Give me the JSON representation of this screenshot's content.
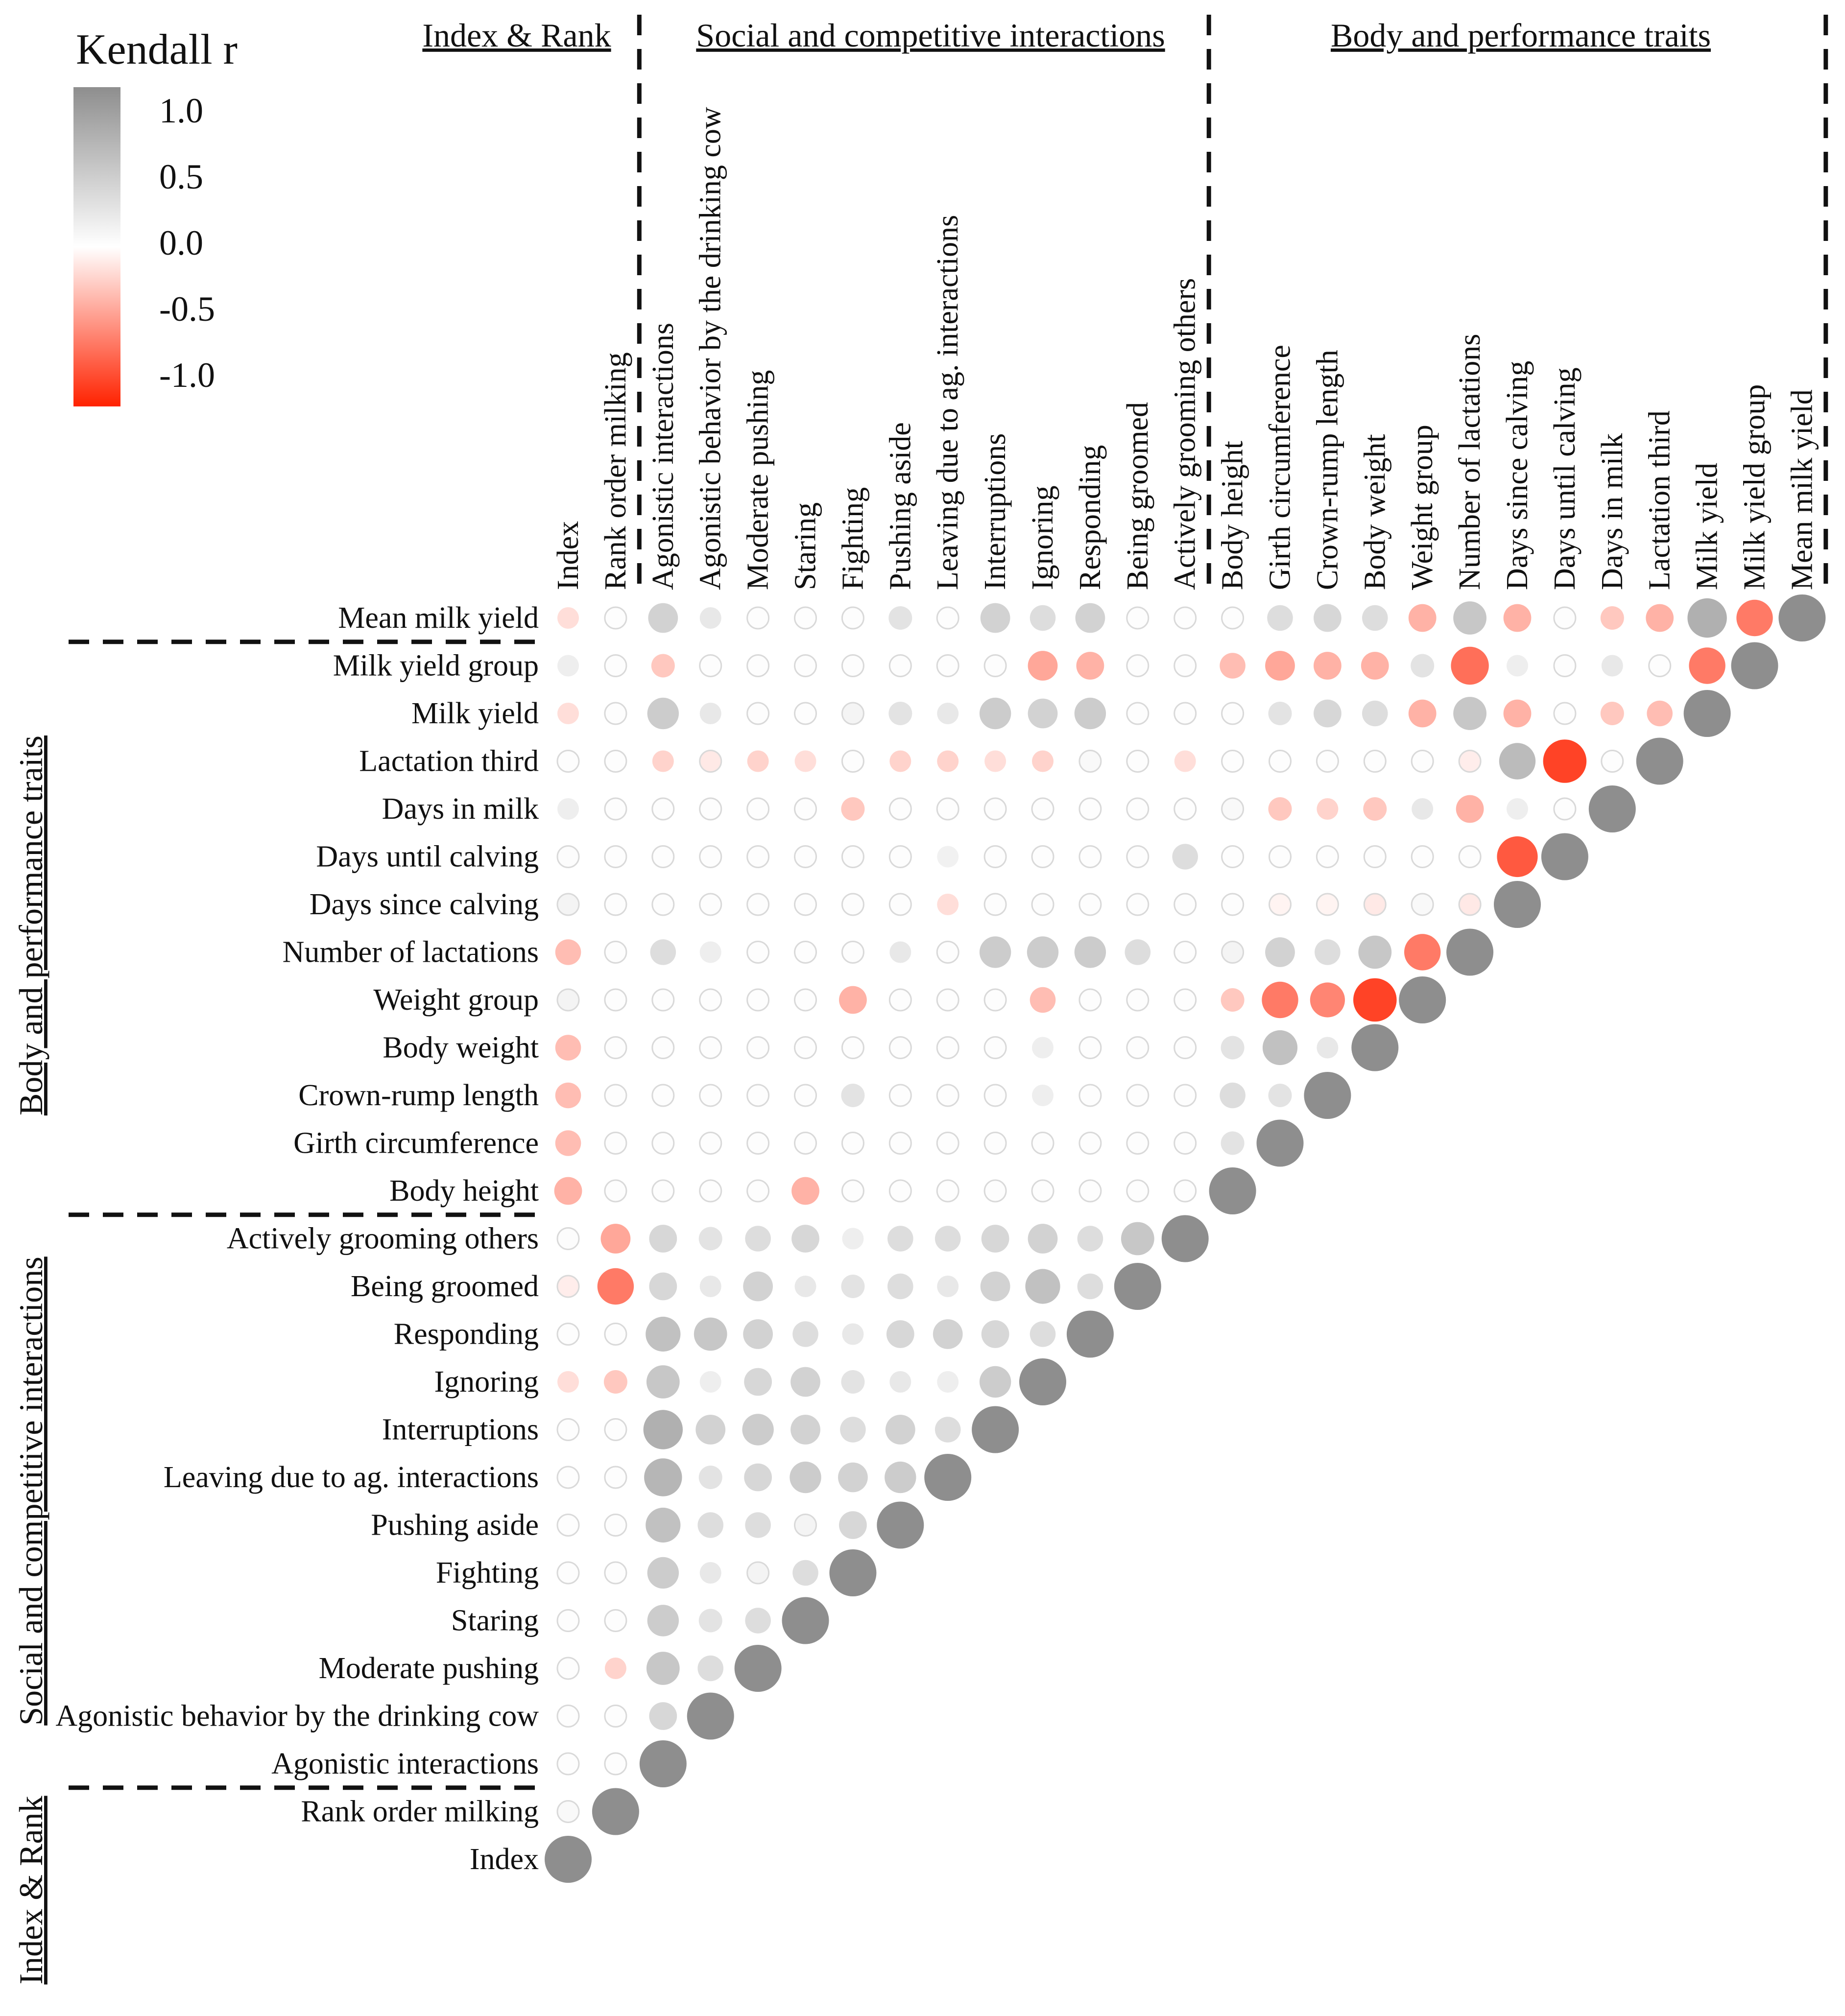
{
  "chart_data": {
    "type": "heatmap",
    "title": "",
    "legend": {
      "title": "Kendall r",
      "ticks": [
        "1.0",
        "0.5",
        "0.0",
        "-0.5",
        "-1.0"
      ],
      "tick_values": [
        1.0,
        0.5,
        0.0,
        -0.5,
        -1.0
      ],
      "position": "top-left"
    },
    "variables": [
      "Index",
      "Rank order milking",
      "Agonistic interactions",
      "Agonistic behavior by the drinking cow",
      "Moderate pushing",
      "Staring",
      "Fighting",
      "Pushing aside",
      "Leaving due to ag. interactions",
      "Interruptions",
      "Ignoring",
      "Responding",
      "Being groomed",
      "Actively grooming others",
      "Body height",
      "Girth circumference",
      "Crown-rump length",
      "Body weight",
      "Weight group",
      "Number of lactations",
      "Days since calving",
      "Days until calving",
      "Days in milk",
      "Lactation third",
      "Milk yield",
      "Milk yield group",
      "Mean milk yield"
    ],
    "groups": [
      {
        "name": "Index & Rank",
        "start": 0,
        "end": 1
      },
      {
        "name": "Social and competitive interactions",
        "start": 2,
        "end": 13
      },
      {
        "name": "Body and performance traits",
        "start": 14,
        "end": 26
      }
    ],
    "correlations": {
      "Rank order milking": [
        0.05
      ],
      "Agonistic interactions": [
        0.02,
        0.02
      ],
      "Agonistic behavior by the drinking cow": [
        0.02,
        0.02,
        0.35
      ],
      "Moderate pushing": [
        0.02,
        -0.2,
        0.5,
        0.3
      ],
      "Staring": [
        0.02,
        0.02,
        0.45,
        0.25,
        0.3
      ],
      "Fighting": [
        0.02,
        0.02,
        0.45,
        0.2,
        0.1,
        0.3
      ],
      "Pushing aside": [
        0.02,
        0.02,
        0.55,
        0.3,
        0.3,
        0.1,
        0.35
      ],
      "Leaving due to ag. interactions": [
        0.02,
        0.02,
        0.65,
        0.25,
        0.35,
        0.45,
        0.4,
        0.45
      ],
      "Interruptions": [
        0.02,
        0.02,
        0.7,
        0.4,
        0.45,
        0.4,
        0.3,
        0.4,
        0.3
      ],
      "Ignoring": [
        -0.15,
        -0.25,
        0.5,
        0.15,
        0.35,
        0.4,
        0.25,
        0.2,
        0.15,
        0.45
      ],
      "Responding": [
        0.02,
        0.02,
        0.55,
        0.5,
        0.4,
        0.3,
        0.2,
        0.35,
        0.4,
        0.35,
        0.3
      ],
      "Being groomed": [
        -0.08,
        -0.6,
        0.35,
        0.2,
        0.4,
        0.2,
        0.25,
        0.3,
        0.2,
        0.4,
        0.55,
        0.3
      ],
      "Actively grooming others": [
        0.03,
        -0.4,
        0.35,
        0.25,
        0.3,
        0.35,
        0.15,
        0.3,
        0.3,
        0.35,
        0.4,
        0.3,
        0.5
      ],
      "Body height": [
        -0.35,
        0.02,
        0.02,
        0.02,
        0.02,
        -0.35,
        0.02,
        0.02,
        0.02,
        0.02,
        0.02,
        0.02,
        0.02,
        0.02
      ],
      "Girth circumference": [
        -0.3,
        0.02,
        0.02,
        0.02,
        0.02,
        0.02,
        0.02,
        0.02,
        0.02,
        0.02,
        0.02,
        0.02,
        0.02,
        0.02,
        0.25
      ],
      "Crown-rump length": [
        -0.3,
        0.02,
        0.02,
        0.02,
        0.02,
        0.02,
        0.25,
        0.02,
        0.02,
        0.02,
        0.15,
        0.02,
        0.02,
        0.02,
        0.3,
        0.25
      ],
      "Body weight": [
        -0.3,
        0.02,
        0.02,
        0.02,
        0.02,
        0.02,
        0.02,
        0.02,
        0.02,
        0.02,
        0.15,
        0.02,
        0.02,
        0.02,
        0.25,
        0.55,
        0.2
      ],
      "Weight group": [
        0.1,
        0.02,
        0.02,
        0.02,
        0.02,
        0.02,
        -0.35,
        0.02,
        0.02,
        0.02,
        -0.3,
        0.02,
        0.02,
        0.02,
        -0.25,
        -0.6,
        -0.55,
        -0.85
      ],
      "Number of lactations": [
        -0.3,
        0.02,
        0.3,
        0.15,
        0.02,
        0.02,
        0.02,
        0.2,
        0.02,
        0.45,
        0.45,
        0.45,
        0.3,
        0.02,
        0.1,
        0.4,
        0.3,
        0.5,
        -0.6
      ],
      "Days since calving": [
        0.1,
        0.02,
        0.02,
        0.02,
        0.02,
        0.02,
        0.02,
        0.02,
        -0.15,
        0.02,
        0.02,
        0.02,
        0.02,
        0.02,
        0.02,
        -0.05,
        -0.05,
        -0.1,
        0.05,
        -0.1
      ],
      "Days until calving": [
        0.03,
        0.02,
        0.02,
        0.02,
        0.02,
        0.02,
        0.02,
        0.02,
        0.12,
        0.02,
        0.02,
        0.02,
        0.02,
        0.3,
        0.02,
        0.02,
        0.02,
        0.02,
        0.02,
        0.02,
        -0.75
      ],
      "Days in milk": [
        0.15,
        0.02,
        0.02,
        0.02,
        0.02,
        0.02,
        -0.25,
        0.02,
        0.02,
        0.02,
        0.02,
        0.02,
        0.02,
        0.02,
        0.05,
        -0.25,
        -0.2,
        -0.25,
        0.2,
        -0.35,
        0.15,
        0.02
      ],
      "Lactation third": [
        0.02,
        0.02,
        -0.2,
        -0.1,
        -0.2,
        -0.15,
        0.02,
        -0.2,
        -0.2,
        -0.15,
        -0.2,
        0.05,
        0.02,
        -0.15,
        0.02,
        0.02,
        0.02,
        0.02,
        0.02,
        -0.08,
        0.6,
        -0.85,
        0.02
      ],
      "Milk yield": [
        -0.15,
        0.02,
        0.45,
        0.2,
        0.02,
        0.02,
        0.1,
        0.25,
        0.2,
        0.45,
        0.4,
        0.45,
        0.02,
        0.02,
        0.02,
        0.25,
        0.35,
        0.3,
        -0.35,
        0.5,
        -0.35,
        0.02,
        -0.25,
        -0.3
      ],
      "Milk yield group": [
        0.15,
        0.02,
        -0.25,
        0.02,
        0.02,
        0.02,
        0.02,
        0.02,
        0.02,
        0.02,
        -0.4,
        -0.35,
        0.02,
        0.02,
        -0.3,
        -0.4,
        -0.35,
        -0.35,
        0.25,
        -0.65,
        0.15,
        0.02,
        0.2,
        0.02,
        -0.6
      ],
      "Mean milk yield": [
        -0.15,
        0.02,
        0.4,
        0.2,
        0.02,
        0.02,
        0.02,
        0.25,
        0.02,
        0.4,
        0.3,
        0.4,
        0.02,
        0.02,
        0.02,
        0.3,
        0.35,
        0.3,
        -0.35,
        0.5,
        -0.35,
        0.02,
        -0.25,
        -0.35,
        0.7,
        -0.6
      ]
    }
  },
  "colors": {
    "positive": "#8e8e8e",
    "zero": "#ffffff",
    "negative": "#ff2200",
    "ring": "#d9d9d9",
    "divider": "#111111"
  }
}
